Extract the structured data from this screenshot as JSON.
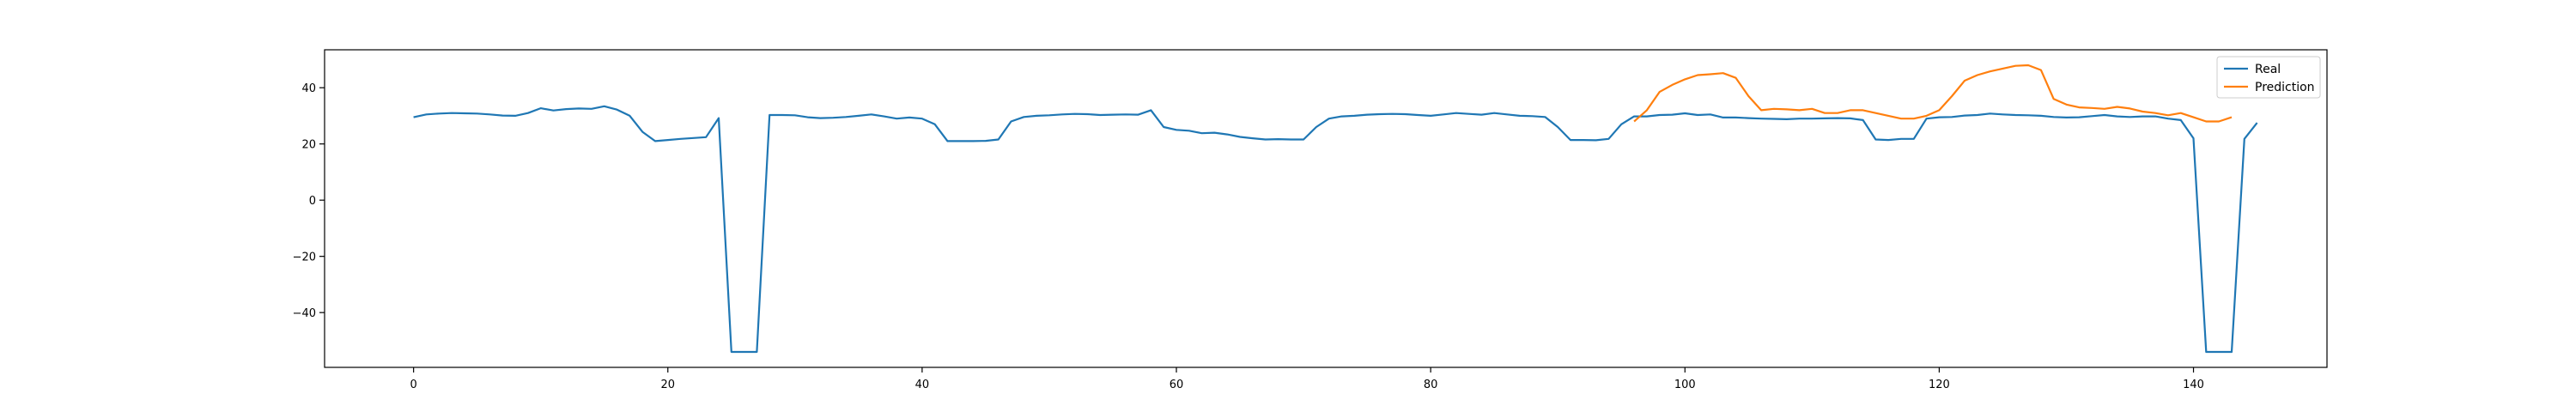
{
  "chart_data": {
    "type": "line",
    "title": "",
    "xlabel": "",
    "ylabel": "",
    "xlim": [
      -7,
      150.5
    ],
    "ylim": [
      -59.5,
      53.5
    ],
    "xticks": [
      0,
      20,
      40,
      60,
      80,
      100,
      120,
      140
    ],
    "yticks": [
      -40,
      -20,
      0,
      20,
      40
    ],
    "grid": false,
    "legend": "top-right",
    "series": [
      {
        "name": "Real",
        "color": "#1f77b4",
        "x_start": 0,
        "values": [
          29.5,
          30.5,
          30.8,
          31.0,
          30.9,
          30.8,
          30.5,
          30.1,
          30.0,
          31.0,
          32.7,
          31.9,
          32.4,
          32.6,
          32.5,
          33.4,
          32.2,
          30.0,
          24.3,
          21.0,
          21.4,
          21.8,
          22.1,
          22.4,
          29.2,
          -54.0,
          -54.0,
          -54.0,
          30.3,
          30.3,
          30.2,
          29.5,
          29.2,
          29.3,
          29.6,
          30.0,
          30.5,
          29.8,
          29.0,
          29.4,
          29.0,
          27.0,
          21.0,
          21.0,
          21.0,
          21.1,
          21.6,
          28.0,
          29.6,
          30.0,
          30.2,
          30.5,
          30.7,
          30.6,
          30.3,
          30.4,
          30.5,
          30.4,
          32.0,
          26.0,
          25.0,
          24.7,
          23.8,
          24.0,
          23.4,
          22.5,
          22.0,
          21.6,
          21.7,
          21.6,
          21.6,
          26.0,
          29.0,
          29.8,
          30.0,
          30.4,
          30.6,
          30.7,
          30.6,
          30.3,
          30.0,
          30.5,
          31.0,
          30.7,
          30.4,
          31.0,
          30.5,
          30.0,
          29.9,
          29.6,
          26.0,
          21.4,
          21.4,
          21.3,
          21.8,
          27.0,
          29.8,
          29.8,
          30.3,
          30.4,
          30.9,
          30.3,
          30.5,
          29.4,
          29.4,
          29.2,
          29.0,
          28.9,
          28.8,
          29.0,
          29.0,
          29.1,
          29.2,
          29.1,
          28.5,
          21.6,
          21.4,
          21.8,
          21.8,
          29.0,
          29.5,
          29.6,
          30.1,
          30.3,
          30.8,
          30.5,
          30.3,
          30.2,
          30.0,
          29.6,
          29.4,
          29.5,
          29.9,
          30.3,
          29.8,
          29.6,
          29.8,
          29.8,
          29.0,
          28.5,
          22.0,
          -54.0,
          -54.0,
          -54.0,
          21.8,
          27.5
        ]
      },
      {
        "name": "Prediction",
        "color": "#ff7f0e",
        "x_start": 96,
        "values": [
          28.0,
          32.0,
          38.5,
          41.0,
          43.0,
          44.5,
          44.8,
          45.2,
          43.5,
          37.0,
          32.0,
          32.5,
          32.3,
          32.0,
          32.5,
          31.0,
          31.0,
          32.0,
          32.0,
          31.0,
          30.0,
          29.0,
          29.0,
          30.0,
          32.0,
          37.0,
          42.5,
          44.5,
          45.8,
          46.8,
          47.8,
          48.0,
          46.3,
          36.0,
          34.0,
          33.0,
          32.8,
          32.5,
          33.2,
          32.6,
          31.5,
          31.0,
          30.2,
          31.0,
          29.5,
          28.0,
          28.0,
          29.5
        ]
      }
    ]
  }
}
